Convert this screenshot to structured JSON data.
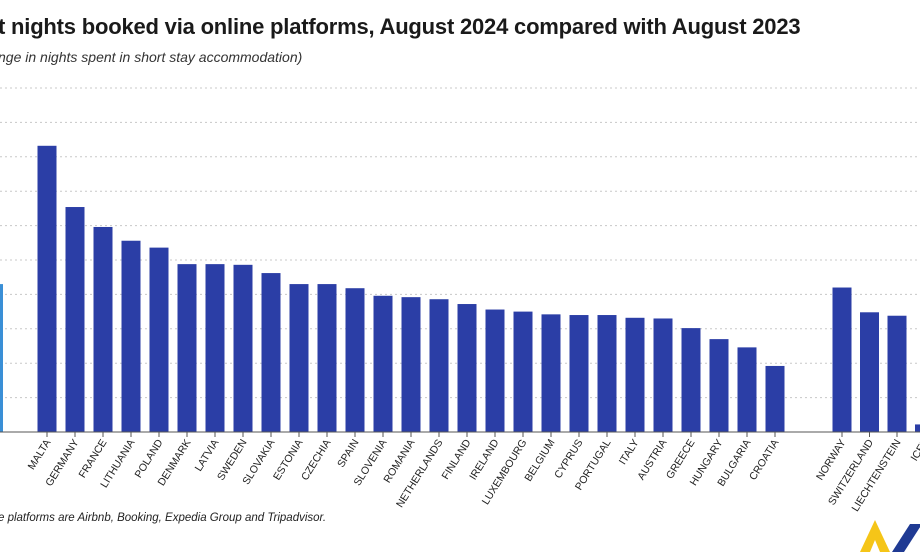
{
  "title": "t nights booked via online platforms, August 2024 compared with August 2023",
  "subtitle": "nge in nights spent in short stay accommodation)",
  "footnote": "e platforms are Airbnb, Booking, Expedia Group and Tripadvisor.",
  "colors": {
    "bar": "#2b3ea6",
    "bar_partial": "#3a8fd6",
    "gridline": "#c8c8c8",
    "axis": "#555555",
    "logo_yellow": "#f5c518",
    "logo_blue": "#1f3a93"
  },
  "chart_data": {
    "type": "bar",
    "title": "t nights booked via online platforms, August 2024 compared with August 2023",
    "ylabel": "",
    "xlabel": "",
    "grid": true,
    "categories": [
      "MALTA",
      "GERMANY",
      "FRANCE",
      "LITHUANIA",
      "POLAND",
      "DENMARK",
      "LATVIA",
      "SWEDEN",
      "SLOVAKIA",
      "ESTONIA",
      "CZECHIA",
      "SPAIN",
      "SLOVENIA",
      "ROMANIA",
      "NETHERLANDS",
      "FINLAND",
      "IRELAND",
      "LUXEMBOURG",
      "BELGIUM",
      "CYPRUS",
      "PORTUGAL",
      "ITALY",
      "AUSTRIA",
      "GREECE",
      "HUNGARY",
      "BULGARIA",
      "CROATIA",
      "NORWAY",
      "SWITZERLAND",
      "LIECHTENSTEIN",
      "ICEL"
    ],
    "values": [
      41.6,
      32.7,
      29.8,
      27.8,
      26.8,
      24.4,
      24.4,
      24.3,
      23.1,
      21.5,
      21.5,
      20.9,
      19.8,
      19.6,
      19.3,
      18.6,
      17.8,
      17.5,
      17.1,
      17.0,
      17.0,
      16.6,
      16.5,
      15.1,
      13.5,
      12.3,
      9.6,
      21.0,
      17.4,
      16.9,
      1.1
    ],
    "partial_left_bar_value": 21.5,
    "ylim": [
      0,
      50
    ]
  }
}
